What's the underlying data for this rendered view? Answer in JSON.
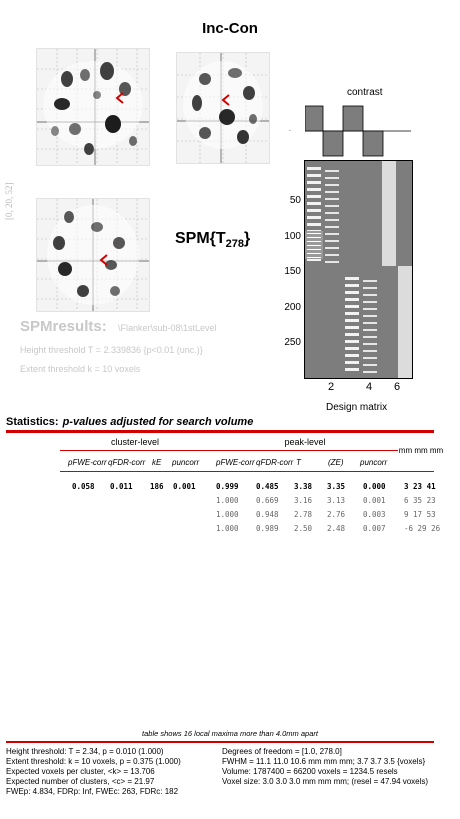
{
  "title": "Inc-Con",
  "side_coords": "[0, 20, 52]",
  "spm": {
    "prefix": "SPM{T",
    "df": "278",
    "suffix": "}"
  },
  "results": {
    "title": "SPMresults:",
    "path": "\\Flanker\\sub-08\\1stLevel",
    "height_threshold": "Height threshold T = 2.339836  {p<0.01 (unc.)}",
    "extent_threshold": "Extent threshold k = 10 voxels"
  },
  "design": {
    "contrast_label": "contrast",
    "y_ticks": [
      "50",
      "100",
      "150",
      "200",
      "250"
    ],
    "x_ticks": [
      "2",
      "4",
      "6"
    ],
    "xlabel": "Design matrix"
  },
  "stats": {
    "title": "Statistics:",
    "subtitle": "p-values adjusted for search volume",
    "cluster_level": "cluster-level",
    "peak_level": "peak-level",
    "mm_label": "mm mm mm",
    "cols": {
      "c_pfwe": "pFWE-corr",
      "c_qfdr": "qFDR-corr",
      "c_ke": "kE",
      "c_punc": "puncorr",
      "p_pfwe": "pFWE-corr",
      "p_qfdr": "qFDR-corr",
      "p_t": "T",
      "p_ze": "(ZE)",
      "p_punc": "puncorr"
    },
    "rows": [
      {
        "c_pfwe": "0.058",
        "c_qfdr": "0.011",
        "c_ke": "186",
        "c_punc": "0.001",
        "p_pfwe": "0.999",
        "p_qfdr": "0.485",
        "t": "3.38",
        "ze": "3.35",
        "p_unc": "0.000",
        "mm": "3 23 41"
      },
      {
        "c_pfwe": "",
        "c_qfdr": "",
        "c_ke": "",
        "c_punc": "",
        "p_pfwe": "1.000",
        "p_qfdr": "0.669",
        "t": "3.16",
        "ze": "3.13",
        "p_unc": "0.001",
        "mm": "6 35 23"
      },
      {
        "c_pfwe": "",
        "c_qfdr": "",
        "c_ke": "",
        "c_punc": "",
        "p_pfwe": "1.000",
        "p_qfdr": "0.948",
        "t": "2.78",
        "ze": "2.76",
        "p_unc": "0.003",
        "mm": "9 17 53"
      },
      {
        "c_pfwe": "",
        "c_qfdr": "",
        "c_ke": "",
        "c_punc": "",
        "p_pfwe": "1.000",
        "p_qfdr": "0.989",
        "t": "2.50",
        "ze": "2.48",
        "p_unc": "0.007",
        "mm": "-6 29 26"
      }
    ],
    "maxima_note": "table shows 16 local maxima more than 4.0mm apart"
  },
  "footer": {
    "left": [
      "Height threshold: T = 2.34, p = 0.010 (1.000)",
      "Extent threshold: k = 10 voxels, p = 0.375 (1.000)",
      "Expected voxels per cluster, <k> = 13.706",
      "Expected number of clusters, <c> = 21.97",
      "FWEp: 4.834, FDRp: Inf, FWEc: 263, FDRc: 182"
    ],
    "right": [
      "Degrees of freedom = [1.0, 278.0]",
      "FWHM = 11.1 11.0 10.6 mm mm mm; 3.7 3.7 3.5 {voxels}",
      "Volume: 1787400 = 66200 voxels = 1234.5 resels",
      "Voxel size: 3.0 3.0 3.0 mm mm mm; (resel = 47.94 voxels)"
    ]
  },
  "colors": {
    "accent_red": "#d40000",
    "gray_text": "#c8c8c8"
  }
}
